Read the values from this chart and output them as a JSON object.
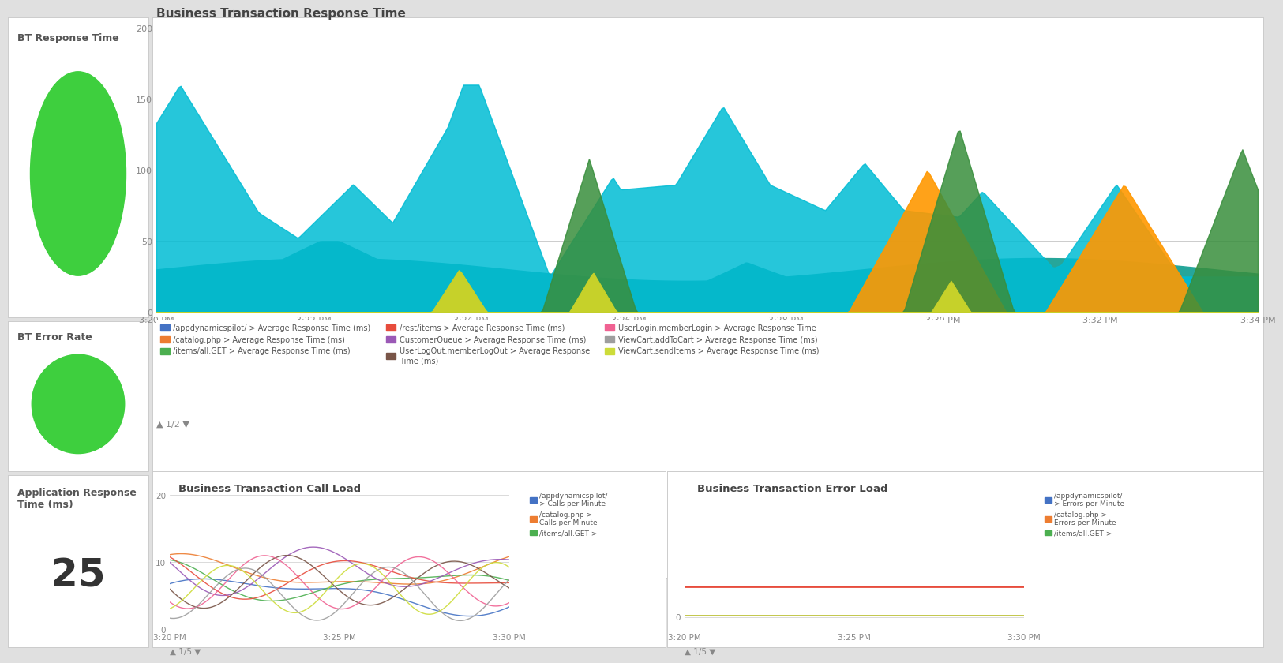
{
  "bg_color": "#e0e0e0",
  "panel_bg": "#ffffff",
  "green_color": "#3ecf3e",
  "panel_border": "#cccccc",
  "top_left_title": "BT Response Time",
  "mid_left_title": "BT Error Rate",
  "bot_left_title": "Application Response\nTime (ms)",
  "bot_left_value": "25",
  "main_chart_title": "Business Transaction Response Time",
  "main_chart_yticks": [
    0,
    50,
    100,
    150,
    200
  ],
  "main_chart_xlabels": [
    "3:20 PM",
    "3:22 PM",
    "3:24 PM",
    "3:26 PM",
    "3:28 PM",
    "3:30 PM",
    "3:32 PM",
    "3:34 PM"
  ],
  "call_load_title": "Business Transaction Call Load",
  "call_load_xlabels": [
    "3:20 PM",
    "3:25 PM",
    "3:30 PM"
  ],
  "error_load_title": "Business Transaction Error Load",
  "error_load_xlabels": [
    "3:20 PM",
    "3:25 PM",
    "3:30 PM"
  ],
  "legend_colors": [
    "#4472c4",
    "#ed7d31",
    "#4caf50",
    "#e74c3c",
    "#9b59b6",
    "#795548",
    "#f06292",
    "#9e9e9e",
    "#cddc39"
  ],
  "legend_labels": [
    "/appdynamicspilot/ > Average Response Time (ms)",
    "/catalog.php > Average Response Time (ms)",
    "/items/all.GET > Average Response Time (ms)",
    "/rest/items > Average Response Time (ms)",
    "CustomerQueue > Average Response Time (ms)",
    "UserLogOut.memberLogOut > Average Response\nTime (ms)",
    "UserLogin.memberLogin > Average Response Time",
    "ViewCart.addToCart > Average Response Time (ms)",
    "ViewCart.sendItems > Average Response Time (ms)"
  ],
  "call_legend_labels": [
    "/appdynamicspilot/\n> Calls per Minute",
    "/catalog.php >\nCalls per Minute",
    "/items/all.GET >"
  ],
  "error_legend_labels": [
    "/appdynamicspilot/\n> Errors per Minute",
    "/catalog.php >\nErrors per Minute",
    "/items/all.GET >"
  ],
  "cyan": "#00bcd4",
  "teal": "#26a69a",
  "orange": "#ff9800",
  "green": "#4caf50",
  "lime": "#c6d12a",
  "darkgreen": "#388e3c"
}
